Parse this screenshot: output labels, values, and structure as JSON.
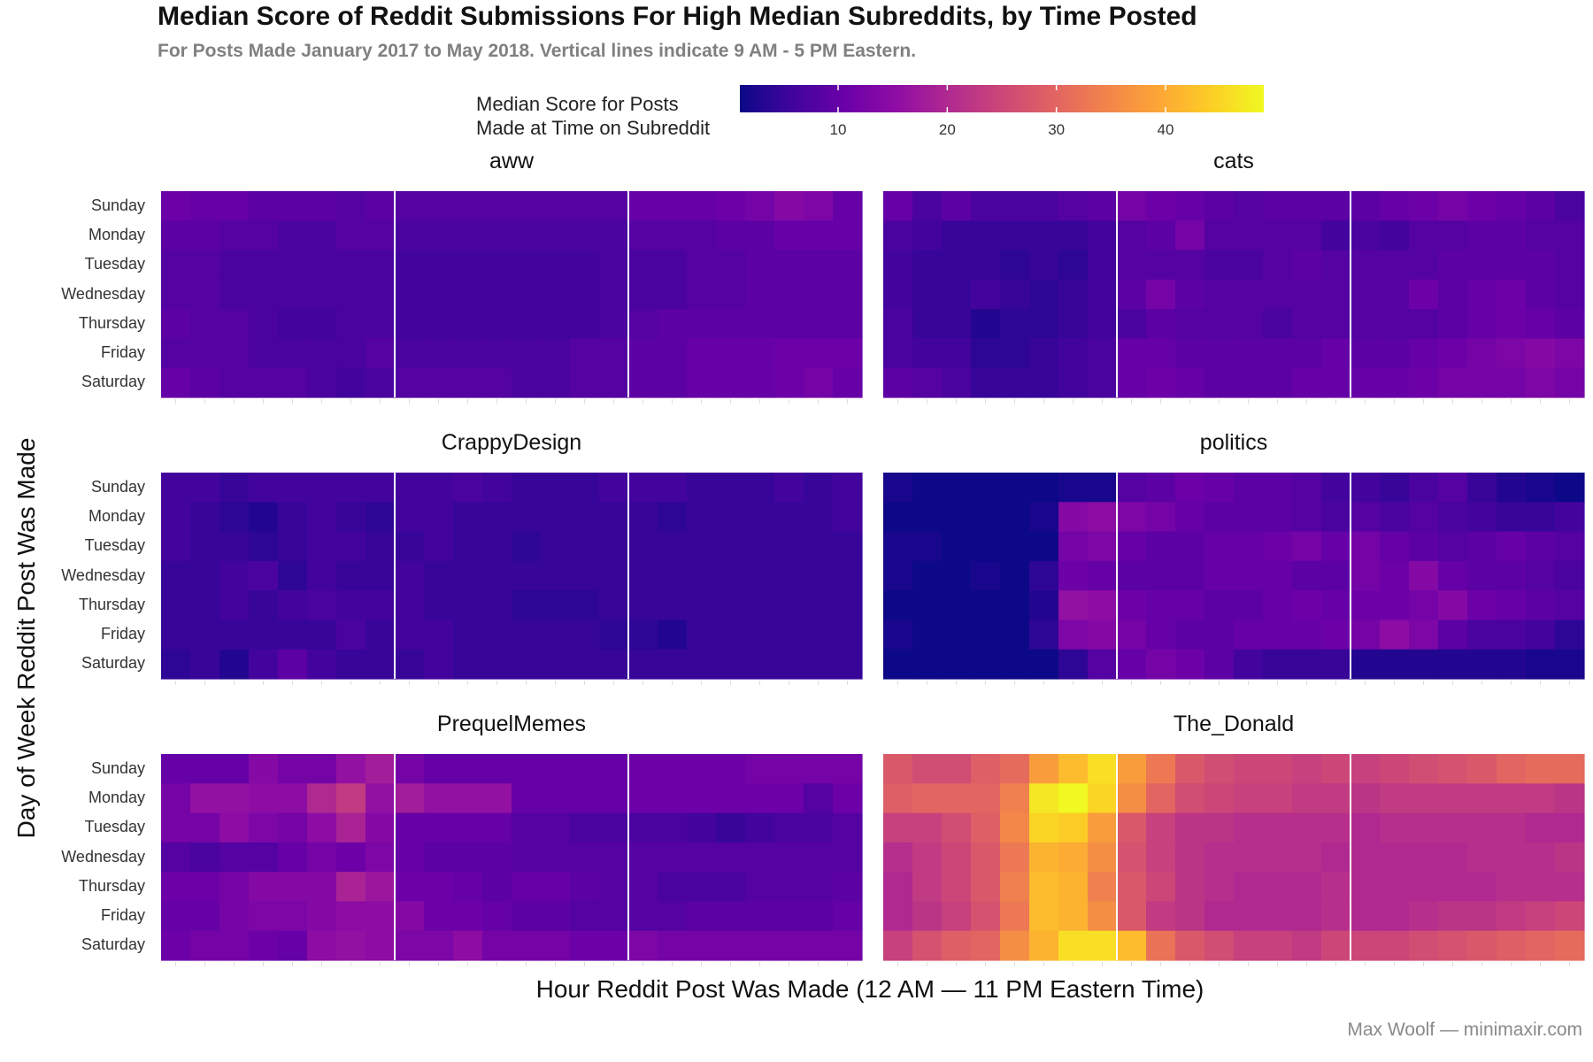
{
  "title": "Median Score of Reddit Submissions For High Median Subreddits, by Time Posted",
  "subtitle": "For Posts Made January 2017 to May 2018. Vertical lines indicate 9 AM - 5 PM Eastern.",
  "legend": {
    "title_line1": "Median Score for Posts",
    "title_line2": "Made at Time on Subreddit",
    "ticks": [
      "10",
      "20",
      "30",
      "40"
    ]
  },
  "xlabel": "Hour Reddit Post Was Made (12 AM — 11 PM Eastern Time)",
  "ylabel": "Day of Week Reddit Post Was Made",
  "caption": "Max Woolf — minimaxir.com",
  "chart_data": {
    "type": "heatmap",
    "colormap": "plasma",
    "color_range": [
      1,
      49
    ],
    "color_ticks": [
      10,
      20,
      30,
      40
    ],
    "hours": [
      0,
      1,
      2,
      3,
      4,
      5,
      6,
      7,
      8,
      9,
      10,
      11,
      12,
      13,
      14,
      15,
      16,
      17,
      18,
      19,
      20,
      21,
      22,
      23
    ],
    "days": [
      "Sunday",
      "Monday",
      "Tuesday",
      "Wednesday",
      "Thursday",
      "Friday",
      "Saturday"
    ],
    "reference_lines_hours": [
      8,
      16
    ],
    "facets": [
      {
        "name": "aww",
        "values": [
          [
            11,
            10,
            10,
            9,
            9,
            9,
            8,
            9,
            8,
            8,
            8,
            8,
            8,
            8,
            8,
            8,
            10,
            10,
            10,
            11,
            12,
            14,
            13,
            10
          ],
          [
            9,
            9,
            8,
            8,
            7,
            7,
            8,
            8,
            7,
            7,
            7,
            7,
            7,
            7,
            7,
            7,
            8,
            8,
            8,
            9,
            9,
            10,
            10,
            10
          ],
          [
            8,
            8,
            7,
            7,
            7,
            7,
            7,
            7,
            6,
            6,
            6,
            6,
            6,
            6,
            6,
            7,
            7,
            7,
            8,
            8,
            9,
            9,
            9,
            9
          ],
          [
            8,
            8,
            7,
            7,
            7,
            7,
            7,
            7,
            6,
            6,
            6,
            6,
            6,
            6,
            6,
            7,
            7,
            7,
            8,
            8,
            9,
            9,
            9,
            9
          ],
          [
            9,
            8,
            8,
            7,
            6,
            6,
            7,
            7,
            6,
            6,
            6,
            6,
            6,
            6,
            6,
            7,
            8,
            9,
            9,
            9,
            9,
            9,
            9,
            9
          ],
          [
            8,
            8,
            8,
            7,
            7,
            7,
            7,
            8,
            7,
            7,
            7,
            7,
            7,
            7,
            8,
            8,
            9,
            9,
            10,
            10,
            10,
            11,
            11,
            11
          ],
          [
            10,
            9,
            8,
            8,
            8,
            7,
            6,
            7,
            8,
            8,
            8,
            8,
            7,
            7,
            8,
            8,
            9,
            9,
            10,
            10,
            10,
            11,
            12,
            10
          ]
        ]
      },
      {
        "name": "cats",
        "values": [
          [
            10,
            7,
            9,
            7,
            7,
            7,
            8,
            9,
            12,
            11,
            10,
            9,
            8,
            9,
            9,
            9,
            9,
            10,
            11,
            12,
            11,
            10,
            9,
            7
          ],
          [
            7,
            6,
            5,
            5,
            5,
            5,
            5,
            6,
            8,
            9,
            12,
            8,
            8,
            8,
            8,
            6,
            7,
            6,
            8,
            8,
            9,
            9,
            8,
            8
          ],
          [
            6,
            5,
            5,
            5,
            4,
            5,
            4,
            6,
            8,
            8,
            8,
            7,
            7,
            8,
            9,
            8,
            8,
            8,
            8,
            9,
            9,
            9,
            9,
            8
          ],
          [
            6,
            5,
            5,
            6,
            5,
            4,
            5,
            6,
            9,
            12,
            9,
            8,
            8,
            8,
            8,
            8,
            8,
            8,
            11,
            9,
            10,
            11,
            9,
            8
          ],
          [
            7,
            5,
            5,
            3,
            4,
            4,
            5,
            6,
            7,
            9,
            8,
            8,
            8,
            7,
            8,
            8,
            8,
            8,
            8,
            9,
            10,
            11,
            10,
            9
          ],
          [
            7,
            6,
            6,
            4,
            4,
            5,
            6,
            7,
            10,
            10,
            9,
            9,
            9,
            9,
            9,
            10,
            9,
            9,
            10,
            11,
            12,
            13,
            14,
            13
          ],
          [
            9,
            8,
            7,
            5,
            5,
            5,
            6,
            7,
            10,
            11,
            10,
            9,
            9,
            9,
            10,
            10,
            10,
            10,
            11,
            12,
            12,
            12,
            13,
            12
          ]
        ]
      },
      {
        "name": "CrappyDesign",
        "values": [
          [
            6,
            6,
            5,
            6,
            6,
            6,
            6,
            6,
            6,
            6,
            7,
            6,
            5,
            5,
            5,
            6,
            6,
            6,
            5,
            5,
            5,
            6,
            5,
            6
          ],
          [
            6,
            5,
            4,
            3,
            5,
            6,
            5,
            4,
            6,
            6,
            5,
            5,
            5,
            5,
            5,
            5,
            5,
            4,
            5,
            5,
            5,
            5,
            5,
            6
          ],
          [
            6,
            5,
            5,
            4,
            5,
            6,
            6,
            5,
            5,
            6,
            5,
            5,
            4,
            5,
            5,
            5,
            5,
            5,
            5,
            5,
            5,
            5,
            5,
            5
          ],
          [
            5,
            5,
            6,
            7,
            4,
            6,
            5,
            5,
            6,
            5,
            5,
            5,
            5,
            5,
            5,
            5,
            5,
            5,
            5,
            5,
            5,
            5,
            5,
            5
          ],
          [
            5,
            5,
            6,
            5,
            6,
            7,
            6,
            6,
            6,
            5,
            5,
            5,
            4,
            4,
            4,
            5,
            5,
            5,
            5,
            5,
            5,
            5,
            5,
            5
          ],
          [
            5,
            5,
            5,
            5,
            5,
            5,
            7,
            5,
            6,
            6,
            5,
            5,
            5,
            5,
            5,
            4,
            4,
            3,
            5,
            5,
            5,
            5,
            5,
            5
          ],
          [
            4,
            5,
            3,
            6,
            9,
            6,
            5,
            5,
            5,
            6,
            5,
            5,
            5,
            5,
            5,
            5,
            5,
            5,
            5,
            5,
            5,
            5,
            5,
            5
          ]
        ]
      },
      {
        "name": "politics",
        "values": [
          [
            2,
            1,
            1,
            1,
            1,
            1,
            2,
            2,
            8,
            9,
            11,
            10,
            9,
            9,
            8,
            6,
            6,
            5,
            7,
            8,
            5,
            3,
            2,
            1
          ],
          [
            1,
            1,
            1,
            1,
            1,
            2,
            14,
            15,
            13,
            12,
            10,
            9,
            9,
            9,
            8,
            7,
            8,
            7,
            8,
            7,
            6,
            5,
            5,
            6
          ],
          [
            2,
            2,
            1,
            1,
            1,
            1,
            12,
            13,
            10,
            9,
            9,
            10,
            10,
            11,
            12,
            10,
            12,
            10,
            9,
            8,
            9,
            10,
            9,
            8
          ],
          [
            2,
            1,
            1,
            2,
            1,
            4,
            11,
            10,
            9,
            9,
            9,
            10,
            10,
            10,
            9,
            9,
            12,
            11,
            14,
            10,
            9,
            9,
            8,
            7
          ],
          [
            1,
            1,
            1,
            1,
            1,
            3,
            16,
            15,
            11,
            10,
            10,
            9,
            9,
            10,
            11,
            10,
            11,
            11,
            12,
            14,
            11,
            10,
            9,
            8
          ],
          [
            2,
            1,
            1,
            1,
            1,
            4,
            13,
            14,
            12,
            10,
            9,
            9,
            10,
            10,
            10,
            11,
            12,
            15,
            13,
            9,
            7,
            7,
            6,
            4
          ],
          [
            1,
            1,
            1,
            1,
            1,
            1,
            4,
            8,
            10,
            12,
            11,
            9,
            6,
            5,
            5,
            5,
            3,
            3,
            3,
            3,
            3,
            3,
            2,
            2
          ]
        ]
      },
      {
        "name": "PrequelMemes",
        "values": [
          [
            10,
            10,
            10,
            14,
            12,
            12,
            16,
            18,
            12,
            10,
            10,
            10,
            10,
            10,
            10,
            10,
            11,
            11,
            11,
            11,
            12,
            12,
            12,
            12
          ],
          [
            12,
            16,
            16,
            15,
            15,
            20,
            23,
            16,
            18,
            16,
            16,
            16,
            10,
            10,
            10,
            10,
            11,
            11,
            11,
            11,
            11,
            11,
            8,
            11
          ],
          [
            12,
            12,
            15,
            13,
            12,
            15,
            19,
            14,
            10,
            10,
            10,
            10,
            8,
            8,
            7,
            7,
            7,
            7,
            6,
            5,
            6,
            7,
            7,
            8
          ],
          [
            8,
            7,
            8,
            8,
            10,
            12,
            11,
            13,
            10,
            9,
            9,
            9,
            8,
            8,
            8,
            8,
            8,
            8,
            8,
            8,
            8,
            8,
            8,
            8
          ],
          [
            11,
            11,
            12,
            14,
            14,
            14,
            19,
            17,
            11,
            11,
            10,
            9,
            10,
            10,
            9,
            8,
            8,
            7,
            7,
            7,
            8,
            8,
            8,
            9
          ],
          [
            10,
            10,
            12,
            13,
            13,
            14,
            15,
            15,
            14,
            11,
            11,
            10,
            9,
            9,
            8,
            8,
            8,
            8,
            9,
            9,
            9,
            9,
            9,
            10
          ],
          [
            11,
            12,
            12,
            11,
            10,
            15,
            16,
            15,
            13,
            13,
            15,
            12,
            12,
            12,
            11,
            11,
            13,
            12,
            12,
            12,
            12,
            12,
            12,
            12
          ]
        ]
      },
      {
        "name": "The_Donald",
        "values": [
          [
            28,
            26,
            26,
            29,
            31,
            38,
            42,
            46,
            38,
            33,
            28,
            26,
            25,
            25,
            24,
            25,
            24,
            25,
            26,
            27,
            28,
            30,
            31,
            31
          ],
          [
            29,
            30,
            30,
            30,
            34,
            47,
            49,
            45,
            36,
            30,
            26,
            25,
            24,
            24,
            23,
            23,
            22,
            23,
            23,
            23,
            23,
            23,
            23,
            22
          ],
          [
            24,
            24,
            26,
            29,
            35,
            45,
            44,
            38,
            28,
            24,
            22,
            22,
            21,
            21,
            21,
            21,
            20,
            21,
            21,
            21,
            21,
            21,
            20,
            20
          ],
          [
            21,
            23,
            25,
            28,
            33,
            41,
            40,
            36,
            27,
            24,
            22,
            21,
            21,
            21,
            21,
            20,
            20,
            20,
            20,
            20,
            21,
            21,
            21,
            22
          ],
          [
            20,
            23,
            25,
            28,
            34,
            42,
            41,
            34,
            28,
            25,
            22,
            21,
            20,
            20,
            20,
            21,
            20,
            20,
            20,
            20,
            20,
            21,
            21,
            21
          ],
          [
            20,
            22,
            24,
            27,
            33,
            42,
            41,
            36,
            28,
            23,
            22,
            20,
            20,
            20,
            20,
            21,
            20,
            20,
            21,
            22,
            22,
            23,
            24,
            25
          ],
          [
            24,
            27,
            29,
            30,
            36,
            41,
            46,
            46,
            42,
            32,
            28,
            26,
            24,
            24,
            23,
            25,
            25,
            25,
            26,
            27,
            28,
            29,
            30,
            31
          ]
        ]
      }
    ]
  }
}
